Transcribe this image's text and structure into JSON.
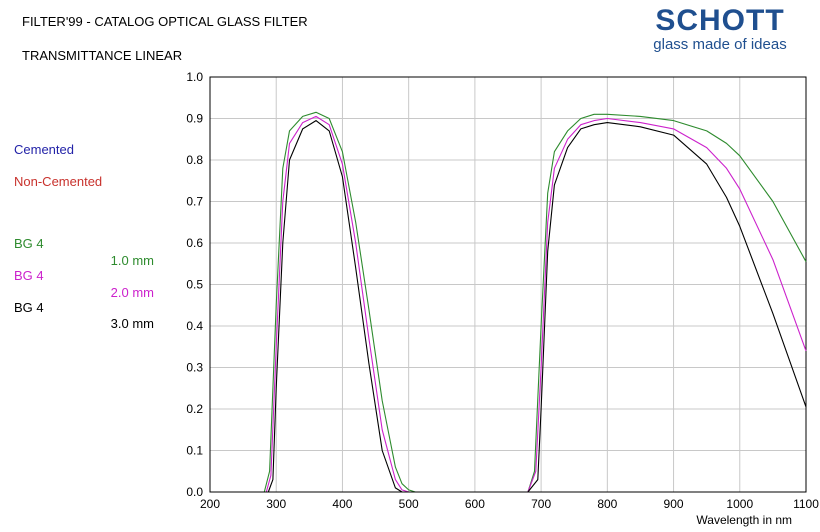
{
  "header": {
    "title": "FILTER'99 - CATALOG OPTICAL GLASS FILTER",
    "subtitle": "TRANSMITTANCE LINEAR"
  },
  "brand": {
    "logo": "SCHOTT",
    "tagline": "glass made of ideas",
    "color": "#1f4f8f"
  },
  "legend": {
    "cemented": {
      "label": "Cemented",
      "color": "#2323a8"
    },
    "non_cemented": {
      "label": "Non-Cemented",
      "color": "#c8322d"
    },
    "items": [
      {
        "name": "BG 4",
        "thickness": "1.0 mm",
        "color": "#2e8b2e"
      },
      {
        "name": "BG 4",
        "thickness": "2.0 mm",
        "color": "#cc22cc"
      },
      {
        "name": "BG 4",
        "thickness": "3.0 mm",
        "color": "#000000"
      }
    ]
  },
  "chart_data": {
    "type": "line",
    "xlabel": "Wavelength in nm",
    "ylabel": "",
    "xlim": [
      200,
      1100
    ],
    "ylim": [
      0,
      1.0
    ],
    "xticks": [
      "200",
      "300",
      "400",
      "500",
      "600",
      "700",
      "800",
      "900",
      "1000",
      "1100"
    ],
    "yticks": [
      "0.0",
      "0.1",
      "0.2",
      "0.3",
      "0.4",
      "0.5",
      "0.6",
      "0.7",
      "0.8",
      "0.9",
      "1.0"
    ],
    "grid": true,
    "series": [
      {
        "name": "BG 4 1.0 mm",
        "color": "#2e8b2e",
        "x": [
          200,
          282,
          290,
          300,
          310,
          320,
          340,
          360,
          380,
          400,
          420,
          440,
          460,
          480,
          490,
          500,
          510,
          520,
          680,
          690,
          700,
          710,
          720,
          740,
          760,
          780,
          800,
          850,
          900,
          950,
          980,
          1000,
          1050,
          1100
        ],
        "y": [
          0,
          0,
          0.05,
          0.45,
          0.78,
          0.87,
          0.905,
          0.915,
          0.9,
          0.82,
          0.65,
          0.44,
          0.22,
          0.06,
          0.02,
          0.005,
          0,
          0,
          0,
          0.05,
          0.4,
          0.72,
          0.82,
          0.87,
          0.9,
          0.91,
          0.91,
          0.905,
          0.895,
          0.87,
          0.84,
          0.81,
          0.7,
          0.555
        ]
      },
      {
        "name": "BG 4 2.0 mm",
        "color": "#cc22cc",
        "x": [
          200,
          285,
          292,
          300,
          310,
          320,
          340,
          360,
          380,
          400,
          420,
          440,
          460,
          480,
          490,
          500,
          680,
          692,
          700,
          710,
          720,
          740,
          760,
          780,
          800,
          850,
          900,
          950,
          980,
          1000,
          1050,
          1100
        ],
        "y": [
          0,
          0,
          0.04,
          0.35,
          0.7,
          0.84,
          0.89,
          0.905,
          0.885,
          0.79,
          0.6,
          0.37,
          0.15,
          0.03,
          0.005,
          0,
          0,
          0.05,
          0.3,
          0.65,
          0.78,
          0.85,
          0.885,
          0.895,
          0.9,
          0.89,
          0.875,
          0.83,
          0.78,
          0.73,
          0.56,
          0.34
        ]
      },
      {
        "name": "BG 4 3.0 mm",
        "color": "#000000",
        "x": [
          200,
          288,
          295,
          300,
          310,
          320,
          340,
          360,
          380,
          400,
          420,
          440,
          460,
          480,
          490,
          680,
          695,
          700,
          710,
          720,
          740,
          760,
          780,
          800,
          850,
          900,
          950,
          980,
          1000,
          1050,
          1100
        ],
        "y": [
          0,
          0,
          0.03,
          0.25,
          0.6,
          0.8,
          0.875,
          0.895,
          0.87,
          0.76,
          0.54,
          0.31,
          0.1,
          0.01,
          0,
          0,
          0.03,
          0.2,
          0.58,
          0.74,
          0.83,
          0.875,
          0.885,
          0.89,
          0.88,
          0.86,
          0.79,
          0.71,
          0.64,
          0.43,
          0.205
        ]
      }
    ]
  }
}
